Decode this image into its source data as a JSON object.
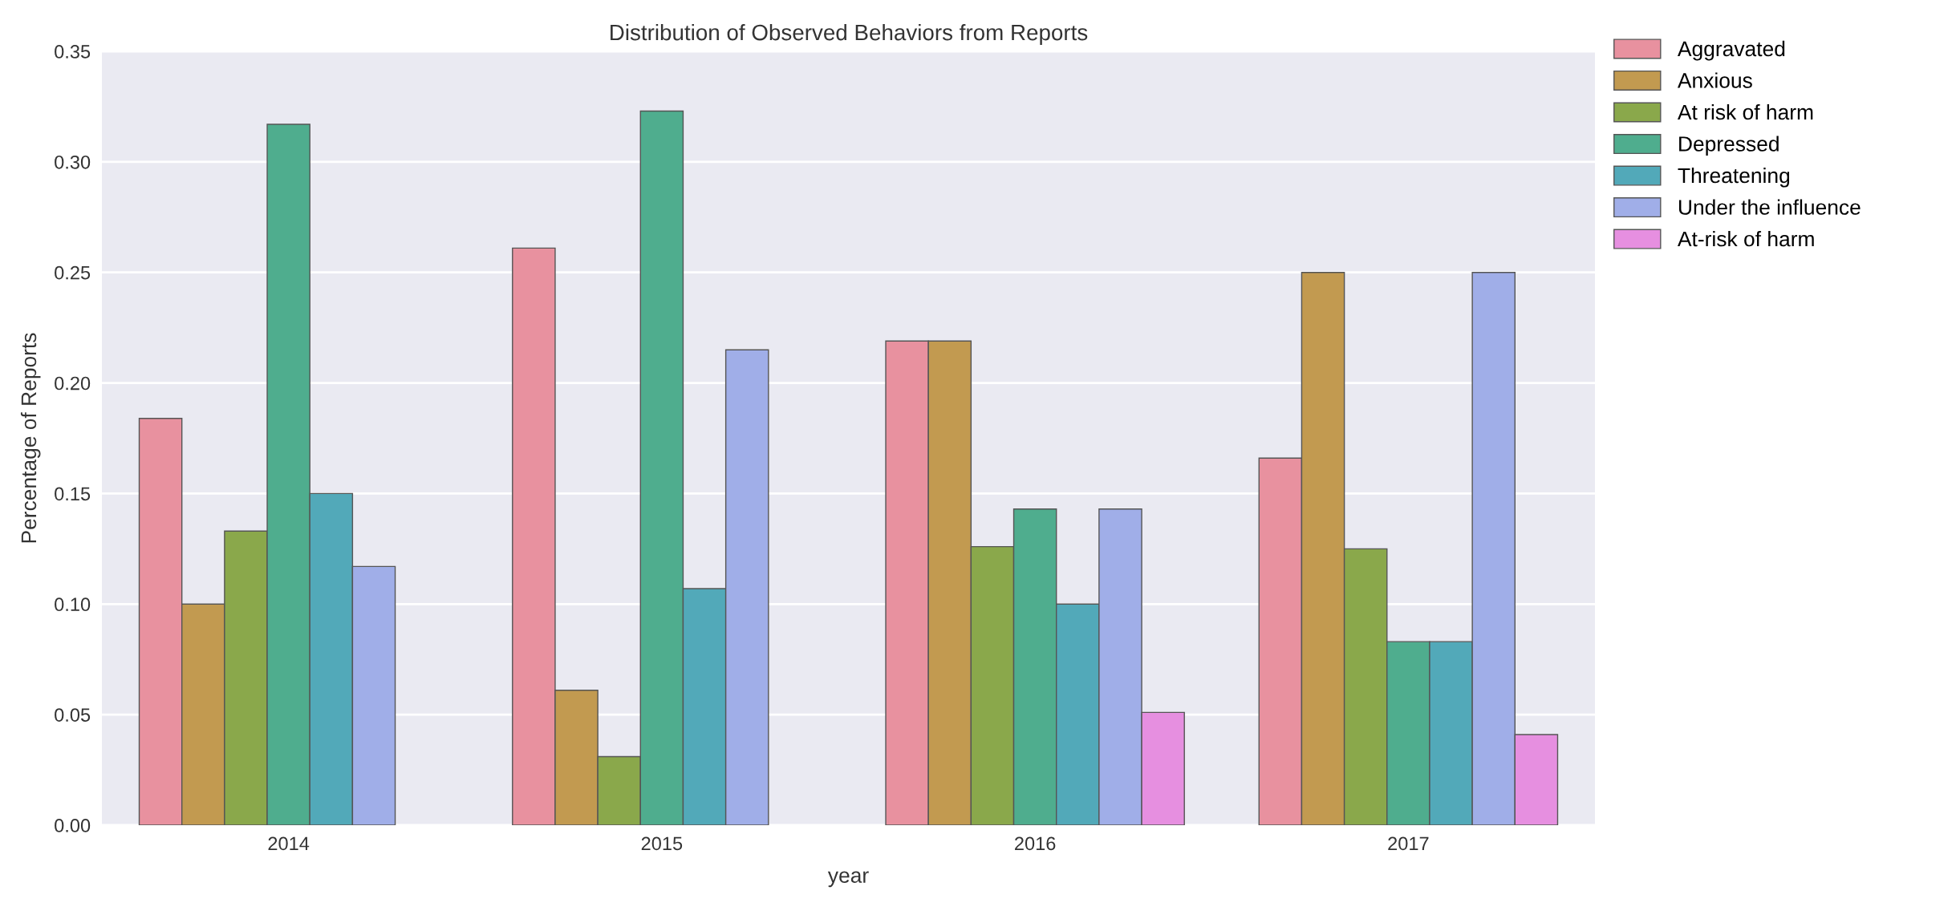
{
  "chart_data": {
    "type": "bar",
    "title": "Distribution of Observed Behaviors from Reports",
    "xlabel": "year",
    "ylabel": "Percentage of Reports",
    "categories": [
      "2014",
      "2015",
      "2016",
      "2017"
    ],
    "series": [
      {
        "name": "Aggravated",
        "color": "#e8919f",
        "values": [
          0.184,
          0.261,
          0.219,
          0.166
        ]
      },
      {
        "name": "Anxious",
        "color": "#c29a50",
        "values": [
          0.1,
          0.061,
          0.219,
          0.25
        ]
      },
      {
        "name": "At risk of harm",
        "color": "#8aa84b",
        "values": [
          0.133,
          0.031,
          0.126,
          0.125
        ]
      },
      {
        "name": "Depressed",
        "color": "#4fad8e",
        "values": [
          0.317,
          0.323,
          0.143,
          0.083
        ]
      },
      {
        "name": "Threatening",
        "color": "#52a9b9",
        "values": [
          0.15,
          0.107,
          0.1,
          0.083
        ]
      },
      {
        "name": "Under the influence",
        "color": "#a0aee8",
        "values": [
          0.117,
          0.215,
          0.143,
          0.25
        ]
      },
      {
        "name": "At-risk of harm",
        "color": "#e68fe0",
        "values": [
          null,
          null,
          0.051,
          0.041
        ]
      }
    ],
    "ylim": [
      0,
      0.35
    ],
    "yticks": [
      {
        "value": 0,
        "label": "0.00"
      },
      {
        "value": 0.05,
        "label": "0.05"
      },
      {
        "value": 0.1,
        "label": "0.10"
      },
      {
        "value": 0.15,
        "label": "0.15"
      },
      {
        "value": 0.2,
        "label": "0.20"
      },
      {
        "value": 0.25,
        "label": "0.25"
      },
      {
        "value": 0.3,
        "label": "0.30"
      },
      {
        "value": 0.35,
        "label": "0.35"
      }
    ],
    "grid": "y",
    "legend": "top right"
  }
}
